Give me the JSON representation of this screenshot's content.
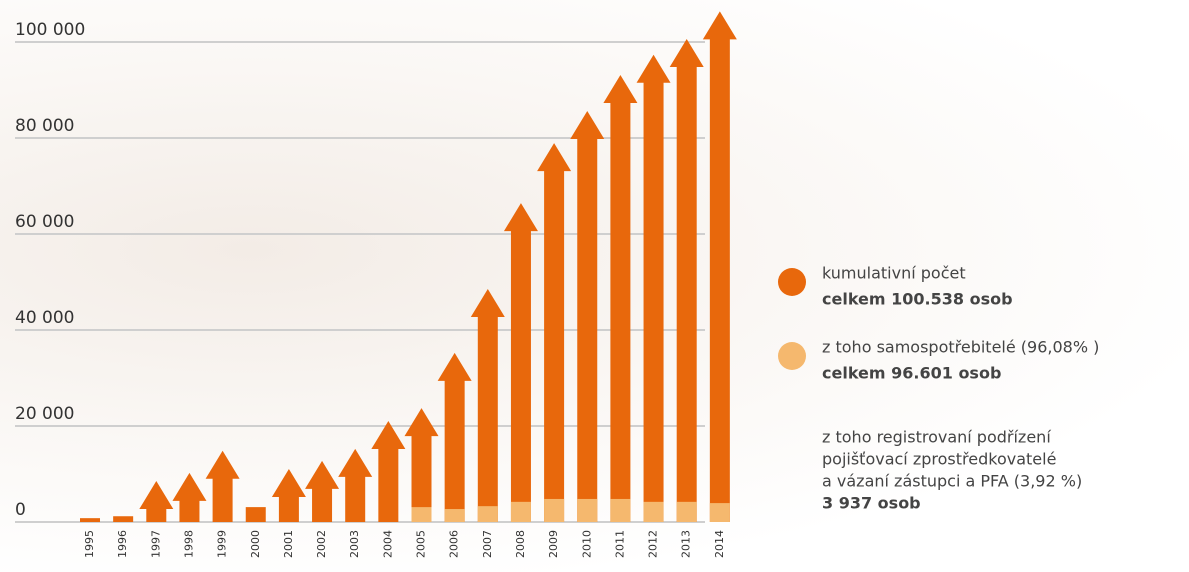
{
  "chart_data": {
    "type": "arrow-bar",
    "categories": [
      "1995",
      "1996",
      "1997",
      "1998",
      "1999",
      "2000",
      "2001",
      "2002",
      "2003",
      "2004",
      "2005",
      "2006",
      "2007",
      "2008",
      "2009",
      "2010",
      "2011",
      "2012",
      "2013",
      "2014"
    ],
    "arrow": [
      false,
      false,
      true,
      true,
      true,
      false,
      true,
      true,
      true,
      true,
      true,
      true,
      true,
      true,
      true,
      true,
      true,
      true,
      true,
      true
    ],
    "series": [
      {
        "name": "kumulativní počet",
        "total_label": "celkem 100.538  osob",
        "color": "#e8680c",
        "values": [
          800,
          1200,
          2700,
          4400,
          9000,
          3100,
          5200,
          6900,
          9400,
          15200,
          17900,
          29400,
          42700,
          60600,
          73100,
          79800,
          87300,
          91500,
          94800,
          100538
        ]
      },
      {
        "name": "z toho samospotřebitelé (96,08% )",
        "total_label": "celkem 96.601 osob",
        "color": "#f5b86e",
        "values": [
          null,
          null,
          null,
          null,
          null,
          null,
          null,
          null,
          null,
          null,
          3100,
          2700,
          3300,
          4200,
          4800,
          4800,
          4800,
          4200,
          4200,
          3937
        ]
      }
    ],
    "legend_extra": [
      "z toho registrovaní podřízení",
      "pojišťovací zprostředkovatelé",
      "a vázaní zástupci a PFA (3,92 %)",
      "3 937 osob"
    ],
    "ylim": [
      0,
      100000
    ],
    "yticks": [
      0,
      {
        "value": 20000,
        "label": "20 000"
      },
      {
        "value": 40000,
        "label": "40 000"
      },
      {
        "value": 60000,
        "label": "60 000"
      },
      {
        "value": 80000,
        "label": "80 000"
      },
      {
        "value": 100000,
        "label": "100 000"
      }
    ],
    "grid": true
  }
}
